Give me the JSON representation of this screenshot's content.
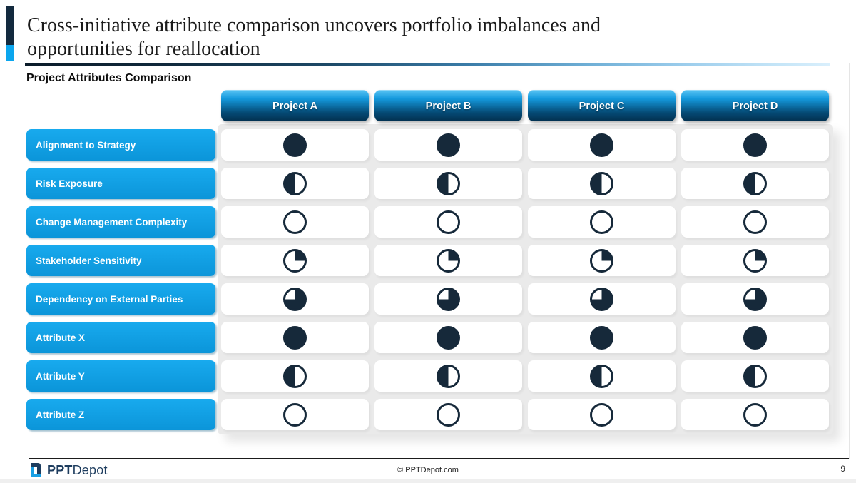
{
  "slide": {
    "title_lines": [
      "Cross-initiative attribute comparison uncovers portfolio imbalances and",
      "opportunities for reallocation"
    ],
    "section_heading": "Project Attributes Comparison",
    "page_number": "9"
  },
  "matrix": {
    "columns": [
      "Project A",
      "Project B",
      "Project C",
      "Project D"
    ],
    "rows": [
      {
        "label": "Alignment to Strategy",
        "values": [
          100,
          100,
          100,
          100
        ]
      },
      {
        "label": "Risk Exposure",
        "values": [
          50,
          50,
          50,
          50
        ]
      },
      {
        "label": "Change Management Complexity",
        "values": [
          0,
          0,
          0,
          0
        ]
      },
      {
        "label": "Stakeholder Sensitivity",
        "values": [
          25,
          25,
          25,
          25
        ]
      },
      {
        "label": "Dependency on External Parties",
        "values": [
          75,
          75,
          75,
          75
        ]
      },
      {
        "label": "Attribute X",
        "values": [
          100,
          100,
          100,
          100
        ]
      },
      {
        "label": "Attribute Y",
        "values": [
          50,
          50,
          50,
          50
        ]
      },
      {
        "label": "Attribute Z",
        "values": [
          0,
          0,
          0,
          0
        ]
      }
    ]
  },
  "footer": {
    "brand_bold": "PPT",
    "brand_rest": "Depot",
    "copyright": "© PPTDepot.com"
  },
  "colors": {
    "accent_dark": "#132a3e",
    "accent_cyan": "#0ba6ee",
    "title_text": "#1b1b1b",
    "harvey_navy": "#16293a",
    "row_label_top": "#18aaee",
    "row_label_bottom": "#0b95d9",
    "header_top": "#55c1f2",
    "header_mid": "#1499dd",
    "header_deep": "#054a75",
    "header_bottom": "#02304f",
    "panel_gray": "#eaeaea",
    "brand_navy": "#1d3c5e",
    "logo_blue": "#189fe4"
  }
}
